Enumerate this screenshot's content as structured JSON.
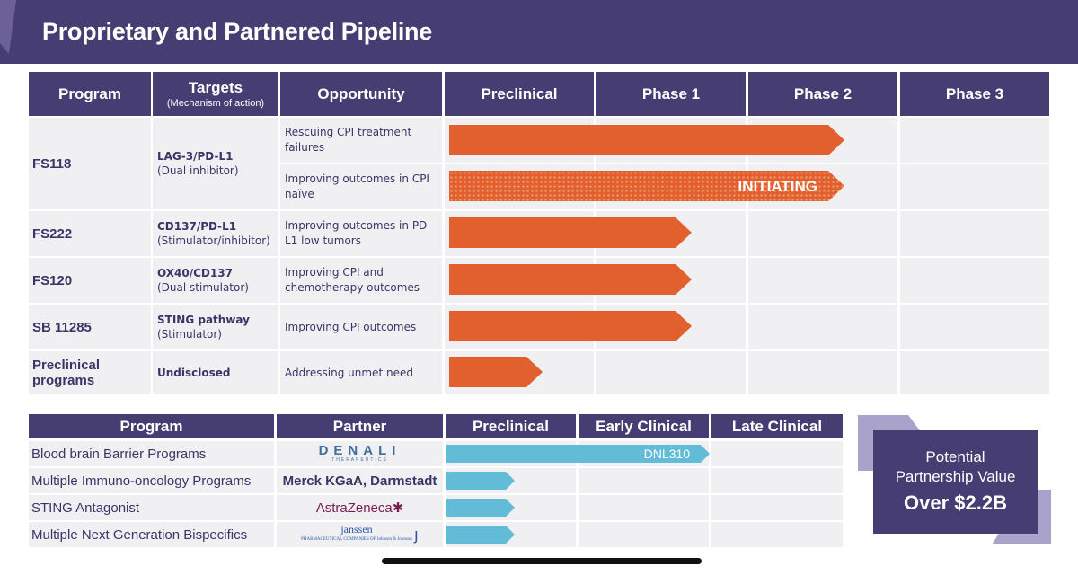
{
  "title": "Proprietary and Partnered Pipeline",
  "colors": {
    "header": "#463d72",
    "orange_bar": "#e1602d",
    "blue_bar": "#62bcd8",
    "cell": "#f0f0f3"
  },
  "top_table": {
    "headers": {
      "program": "Program",
      "targets": "Targets",
      "targets_sub": "(Mechanism of action)",
      "opportunity": "Opportunity",
      "preclinical": "Preclinical",
      "phase1": "Phase 1",
      "phase2": "Phase 2",
      "phase3": "Phase 3"
    },
    "programs": [
      {
        "name": "FS118",
        "target": "LAG-3/PD-L1",
        "mechanism": "(Dual inhibitor)",
        "opportunities": [
          {
            "text": "Rescuing CPI treatment failures",
            "progress": "Phase 2"
          },
          {
            "text": "Improving outcomes in CPI naïve",
            "progress": "Phase 2",
            "label": "INITIATING"
          }
        ]
      },
      {
        "name": "FS222",
        "target": "CD137/PD-L1",
        "mechanism": "(Stimulator/inhibitor)",
        "opportunities": [
          {
            "text": "Improving outcomes  in PD-L1 low tumors",
            "progress": "Phase 1"
          }
        ]
      },
      {
        "name": "FS120",
        "target": "OX40/CD137",
        "mechanism": "(Dual stimulator)",
        "opportunities": [
          {
            "text": "Improving CPI and chemotherapy outcomes",
            "progress": "Phase 1"
          }
        ]
      },
      {
        "name": "SB 11285",
        "target": "STING pathway",
        "mechanism": "(Stimulator)",
        "opportunities": [
          {
            "text": "Improving CPI outcomes",
            "progress": "Phase 1"
          }
        ]
      },
      {
        "name": "Preclinical programs",
        "target": "Undisclosed",
        "mechanism": "",
        "opportunities": [
          {
            "text": "Addressing unmet need",
            "progress": "Preclinical"
          }
        ]
      }
    ]
  },
  "bottom_table": {
    "headers": {
      "program": "Program",
      "partner": "Partner",
      "preclinical": "Preclinical",
      "early": "Early Clinical",
      "late": "Late Clinical"
    },
    "rows": [
      {
        "program": "Blood brain Barrier Programs",
        "partner": "DENALI",
        "partner_sub": "THERAPEUTICS",
        "bar_label": "DNL310",
        "progress": "Early Clinical"
      },
      {
        "program": "Multiple Immuno-oncology Programs",
        "partner": "Merck KGaA, Darmstadt",
        "progress": "Preclinical"
      },
      {
        "program": "STING Antagonist",
        "partner": "AstraZeneca",
        "progress": "Preclinical"
      },
      {
        "program": "Multiple Next Generation Bispecifics",
        "partner": "janssen",
        "partner_sub": "PHARMACEUTICAL COMPANIES OF Johnson & Johnson",
        "progress": "Preclinical"
      }
    ]
  },
  "value_box": {
    "line1": "Potential",
    "line2": "Partnership Value",
    "line3": "Over $2.2B"
  }
}
